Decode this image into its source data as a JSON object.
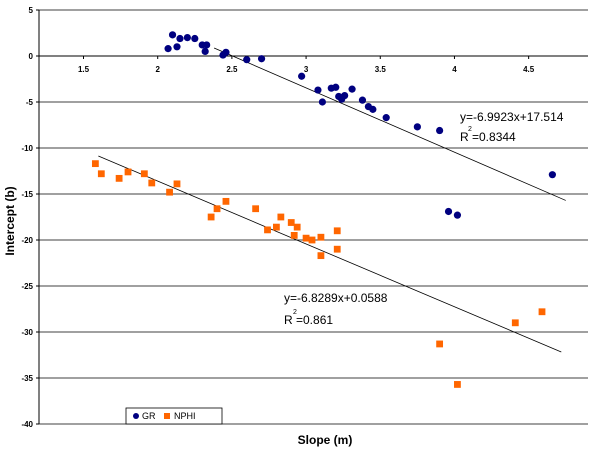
{
  "chart_data": {
    "type": "scatter",
    "xlabel": "Slope (m)",
    "ylabel": "Intercept (b)",
    "xlim": [
      1.2,
      4.9
    ],
    "ylim": [
      -40,
      5
    ],
    "x_ticks": [
      "1.5",
      "2",
      "2.5",
      "3",
      "3.5",
      "4",
      "4.5"
    ],
    "y_ticks": [
      "5",
      "0",
      "-5",
      "-10",
      "-15",
      "-20",
      "-25",
      "-30",
      "-35",
      "-40"
    ],
    "legend": {
      "position": "bottom-left",
      "entries": [
        "GR",
        "NPHI"
      ]
    },
    "series": [
      {
        "name": "GR",
        "color": "#000080",
        "marker": "circle",
        "points": [
          [
            2.07,
            0.8
          ],
          [
            2.1,
            2.3
          ],
          [
            2.13,
            1.0
          ],
          [
            2.15,
            1.9
          ],
          [
            2.2,
            2.0
          ],
          [
            2.25,
            1.9
          ],
          [
            2.3,
            1.2
          ],
          [
            2.32,
            0.5
          ],
          [
            2.33,
            1.2
          ],
          [
            2.44,
            0.1
          ],
          [
            2.46,
            0.4
          ],
          [
            2.6,
            -0.4
          ],
          [
            2.7,
            -0.3
          ],
          [
            2.97,
            -2.2
          ],
          [
            3.08,
            -3.7
          ],
          [
            3.11,
            -5.0
          ],
          [
            3.17,
            -3.5
          ],
          [
            3.2,
            -3.4
          ],
          [
            3.22,
            -4.4
          ],
          [
            3.24,
            -4.7
          ],
          [
            3.26,
            -4.3
          ],
          [
            3.31,
            -3.6
          ],
          [
            3.38,
            -4.8
          ],
          [
            3.42,
            -5.5
          ],
          [
            3.45,
            -5.8
          ],
          [
            3.54,
            -6.7
          ],
          [
            3.75,
            -7.7
          ],
          [
            3.9,
            -8.1
          ],
          [
            3.96,
            -16.9
          ],
          [
            4.02,
            -17.3
          ],
          [
            4.66,
            -12.9
          ]
        ],
        "trendline": {
          "x": [
            2.38,
            4.75
          ],
          "equation": "y=-6.9923x+17.514",
          "r2": "R  =0.8344",
          "r2_exp": "2"
        }
      },
      {
        "name": "NPHI",
        "color": "#ff6600",
        "marker": "square",
        "points": [
          [
            1.58,
            -11.7
          ],
          [
            1.62,
            -12.8
          ],
          [
            1.74,
            -13.3
          ],
          [
            1.8,
            -12.6
          ],
          [
            1.91,
            -12.8
          ],
          [
            1.96,
            -13.8
          ],
          [
            2.08,
            -14.8
          ],
          [
            2.13,
            -13.9
          ],
          [
            2.36,
            -17.5
          ],
          [
            2.4,
            -16.6
          ],
          [
            2.46,
            -15.8
          ],
          [
            2.66,
            -16.6
          ],
          [
            2.74,
            -18.9
          ],
          [
            2.8,
            -18.6
          ],
          [
            2.83,
            -17.5
          ],
          [
            2.9,
            -18.1
          ],
          [
            2.94,
            -18.6
          ],
          [
            2.92,
            -19.5
          ],
          [
            3.0,
            -19.8
          ],
          [
            3.04,
            -20.0
          ],
          [
            3.1,
            -19.7
          ],
          [
            3.1,
            -21.7
          ],
          [
            3.21,
            -19.0
          ],
          [
            3.21,
            -21.0
          ],
          [
            3.9,
            -31.3
          ],
          [
            4.02,
            -35.7
          ],
          [
            4.41,
            -29.0
          ],
          [
            4.59,
            -27.8
          ]
        ],
        "trendline": {
          "x": [
            1.6,
            4.72
          ],
          "equation": "y=-6.8289x+0.0588",
          "r2": "R =0.861",
          "r2_exp": "2"
        }
      }
    ]
  }
}
